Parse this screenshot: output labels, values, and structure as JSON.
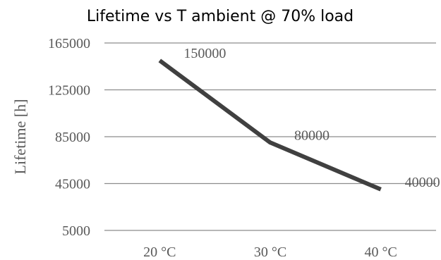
{
  "chart_data": {
    "type": "line",
    "title": "Lifetime vs T ambient @ 70% load",
    "xlabel": "",
    "ylabel": "Lifetime [h]",
    "categories": [
      "20 °C",
      "30 °C",
      "40 °C"
    ],
    "values": [
      150000,
      80000,
      40000
    ],
    "data_labels": [
      "150000",
      "80000",
      "40000"
    ],
    "ylim": [
      5000,
      165000
    ],
    "yticks": [
      5000,
      45000,
      85000,
      125000,
      165000
    ],
    "ytick_labels": [
      "5000",
      "45000",
      "85000",
      "125000",
      "165000"
    ],
    "grid": true,
    "legend": "none",
    "line_color": "#404040"
  }
}
